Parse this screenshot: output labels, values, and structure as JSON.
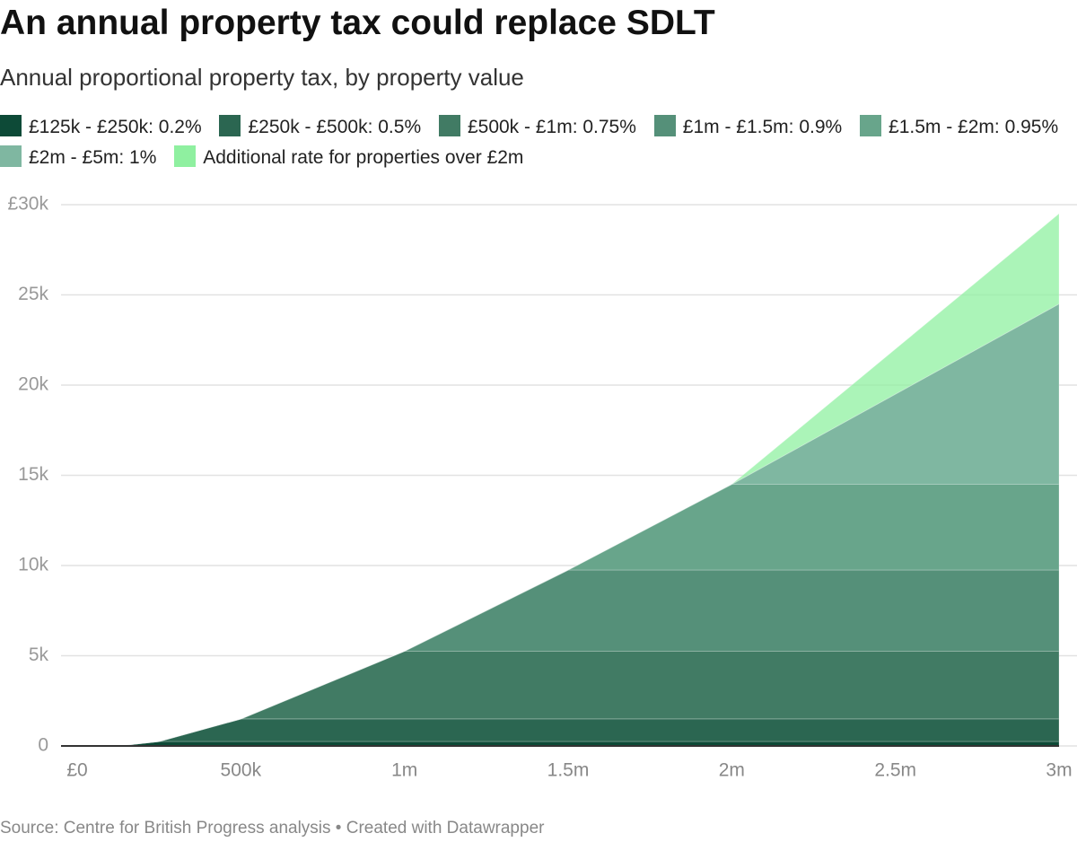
{
  "chart_data": {
    "type": "stacked_area",
    "title": "An annual property tax could replace SDLT",
    "subtitle": "Annual proportional property tax, by property value",
    "source": "Source: Centre for British Progress analysis • Created with Datawrapper",
    "x": [
      0,
      125000,
      250000,
      500000,
      1000000,
      1500000,
      2000000,
      3000000
    ],
    "xlim": [
      0,
      3000000
    ],
    "xticks": [
      {
        "value": 0,
        "label": "£0"
      },
      {
        "value": 500000,
        "label": "500k"
      },
      {
        "value": 1000000,
        "label": "1m"
      },
      {
        "value": 1500000,
        "label": "1.5m"
      },
      {
        "value": 2000000,
        "label": "2m"
      },
      {
        "value": 2500000,
        "label": "2.5m"
      },
      {
        "value": 3000000,
        "label": "3m"
      }
    ],
    "ylim": [
      0,
      30000
    ],
    "yticks": [
      0,
      {
        "value": 5000,
        "label": "5k"
      },
      {
        "value": 10000,
        "label": "10k"
      },
      {
        "value": 15000,
        "label": "15k"
      },
      {
        "value": 20000,
        "label": "20k"
      },
      {
        "value": 25000,
        "label": "25k"
      },
      {
        "value": 30000,
        "label": "£30k"
      }
    ],
    "grid": true,
    "series": [
      {
        "name": "£125k - £250k: 0.2%",
        "color": "#0d4a37",
        "values": [
          0,
          0,
          250,
          250,
          250,
          250,
          250,
          250
        ]
      },
      {
        "name": "£250k - £500k: 0.5%",
        "color": "#2b6651",
        "values": [
          0,
          0,
          0,
          1250,
          1250,
          1250,
          1250,
          1250
        ]
      },
      {
        "name": "£500k - £1m: 0.75%",
        "color": "#417b64",
        "values": [
          0,
          0,
          0,
          0,
          3750,
          3750,
          3750,
          3750
        ]
      },
      {
        "name": "£1m - £1.5m: 0.9%",
        "color": "#559079",
        "values": [
          0,
          0,
          0,
          0,
          0,
          4500,
          4500,
          4500
        ]
      },
      {
        "name": "£1.5m - £2m: 0.95%",
        "color": "#68a58b",
        "values": [
          0,
          0,
          0,
          0,
          0,
          0,
          4750,
          4750
        ]
      },
      {
        "name": "£2m - £5m: 1%",
        "color": "#7fb7a1",
        "values": [
          0,
          0,
          0,
          0,
          0,
          0,
          0,
          10000
        ]
      },
      {
        "name": "Additional rate for properties over £2m",
        "color": "#8ff0a0",
        "values": [
          0,
          0,
          0,
          0,
          0,
          0,
          0,
          5000
        ]
      }
    ]
  }
}
